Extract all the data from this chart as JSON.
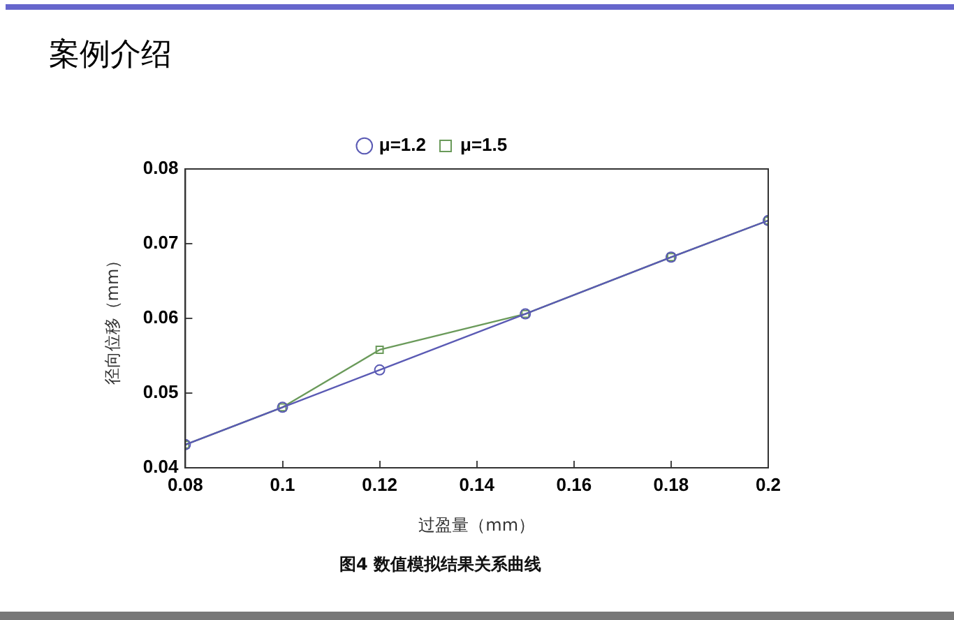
{
  "chart_data": {
    "type": "line",
    "title": "案例介绍",
    "xlabel": "过盈量（mm）",
    "ylabel": "径向位移（mm）",
    "annotations": [
      "图4 数值模拟结果关系曲线"
    ],
    "x": [
      0.08,
      0.1,
      0.12,
      0.15,
      0.18,
      0.2
    ],
    "series": [
      {
        "name": "μ=1.2",
        "color": "#5a5ab4",
        "marker": "circle",
        "values": [
          0.0431,
          0.0481,
          0.0531,
          0.0606,
          0.0682,
          0.0731
        ]
      },
      {
        "name": "μ=1.5",
        "color": "#6a9a5a",
        "marker": "square",
        "values": [
          0.0431,
          0.0481,
          0.0558,
          0.0606,
          0.0682,
          0.0731
        ]
      }
    ],
    "xlim": [
      0.08,
      0.2
    ],
    "xticks": [
      0.08,
      0.1,
      0.12,
      0.14,
      0.16,
      0.18,
      0.2
    ],
    "ylim": [
      0.04,
      0.08
    ],
    "yticks": [
      0.04,
      0.05,
      0.06,
      0.07,
      0.08
    ],
    "grid": false,
    "legend": "top",
    "line_style": "solid"
  }
}
